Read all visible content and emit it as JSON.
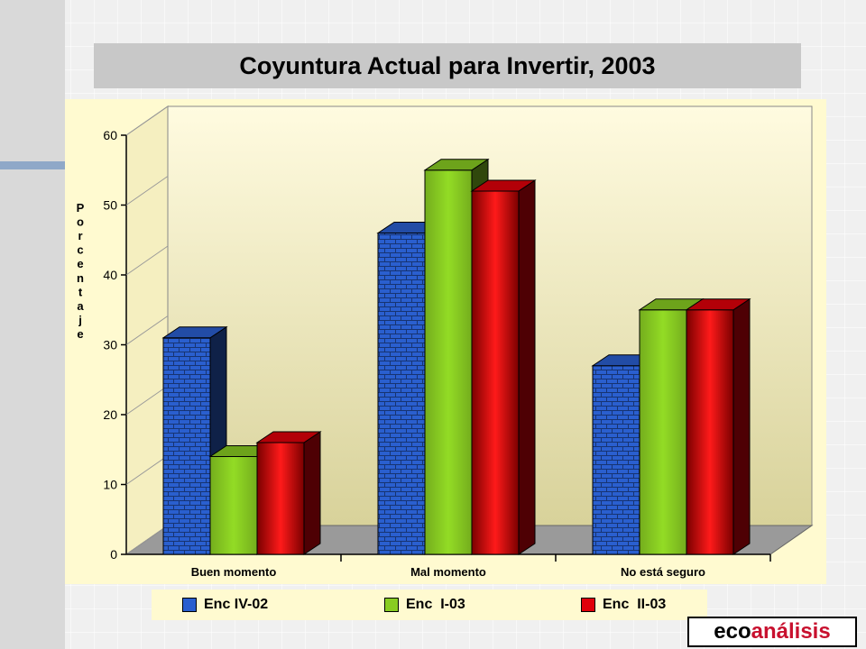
{
  "chart_data": {
    "type": "bar",
    "title": "Coyuntura Actual para Invertir, 2003",
    "ylabel": "Porcentaje",
    "xlabel": "",
    "categories": [
      "Buen momento",
      "Mal momento",
      "No está seguro"
    ],
    "series": [
      {
        "name": "Enc IV-02",
        "values": [
          31,
          46,
          27
        ],
        "color": "#2a5fcf"
      },
      {
        "name": "Enc  I-03",
        "values": [
          14,
          55,
          35
        ],
        "color": "#88cc22"
      },
      {
        "name": "Enc  II-03",
        "values": [
          16,
          52,
          35
        ],
        "color": "#e0000a"
      }
    ],
    "ylim": [
      0,
      60
    ],
    "yticks": [
      0,
      10,
      20,
      30,
      40,
      50,
      60
    ],
    "legend_position": "bottom",
    "background_color": "#fffad0"
  },
  "logo": {
    "part1": "eco",
    "part2": "análisis"
  }
}
